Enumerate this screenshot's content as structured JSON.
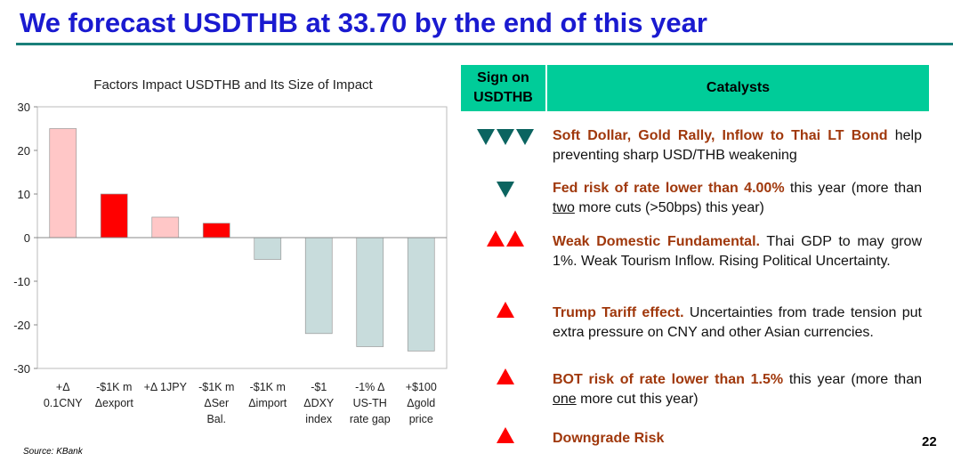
{
  "title": "We forecast USDTHB at 33.70 by the end of this year",
  "source": "Source: KBank",
  "page_number": "22",
  "table": {
    "header_sign": "Sign on USDTHB",
    "header_catalysts": "Catalysts",
    "rows": [
      {
        "sign": "down",
        "count": 3,
        "highlight": "Soft Dollar, Gold Rally, Inflow to Thai LT Bond",
        "text": " help preventing sharp USD/THB weakening"
      },
      {
        "sign": "down",
        "count": 1,
        "highlight": "Fed risk of rate lower than 4.00%",
        "text": " this year (more than ",
        "underline": "two",
        "text2": " more cuts (>50bps) this year)"
      },
      {
        "sign": "up",
        "count": 2,
        "highlight": "Weak Domestic Fundamental.",
        "text": " Thai GDP to may grow 1%. Weak Tourism Inflow. Rising Political Uncertainty."
      },
      {
        "sign": "up",
        "count": 1,
        "highlight": "Trump Tariff effect.",
        "text": " Uncertainties from trade tension put extra pressure on CNY and other Asian currencies."
      },
      {
        "sign": "up",
        "count": 1,
        "highlight": "BOT risk of rate lower than 1.5%",
        "text": " this year (more than ",
        "underline": "one",
        "text2": " more cut this year)"
      },
      {
        "sign": "up",
        "count": 1,
        "highlight": "Downgrade Risk",
        "text": ""
      }
    ],
    "colors": {
      "down": "#0b6460",
      "up": "#ff0000",
      "header": "#00cc99",
      "highlight": "#a0380c"
    }
  },
  "chart_data": {
    "type": "bar",
    "title": "Factors Impact USDTHB and Its Size of Impact",
    "categories": [
      [
        "+Δ",
        "0.1CNY"
      ],
      [
        "-$1K m",
        "Δexport"
      ],
      [
        "+Δ 1JPY"
      ],
      [
        "-$1K m",
        "ΔSer",
        "Bal."
      ],
      [
        "-$1K m",
        "Δimport"
      ],
      [
        "-$1",
        "ΔDXY",
        "index"
      ],
      [
        "-1% Δ",
        "US-TH",
        "rate gap"
      ],
      [
        "+$100",
        "Δgold",
        "price"
      ]
    ],
    "values": [
      25,
      10,
      4.7,
      3.3,
      -5,
      -22,
      -25,
      -26
    ],
    "colors": [
      "#ffc7c7",
      "#ff0000",
      "#ffc7c7",
      "#ff0000",
      "#c8dcdc",
      "#c8dcdc",
      "#c8dcdc",
      "#c8dcdc"
    ],
    "ylim": [
      -30,
      30
    ],
    "yticks": [
      30,
      20,
      10,
      0,
      -10,
      -20,
      -30
    ],
    "xlabel": "",
    "ylabel": ""
  }
}
